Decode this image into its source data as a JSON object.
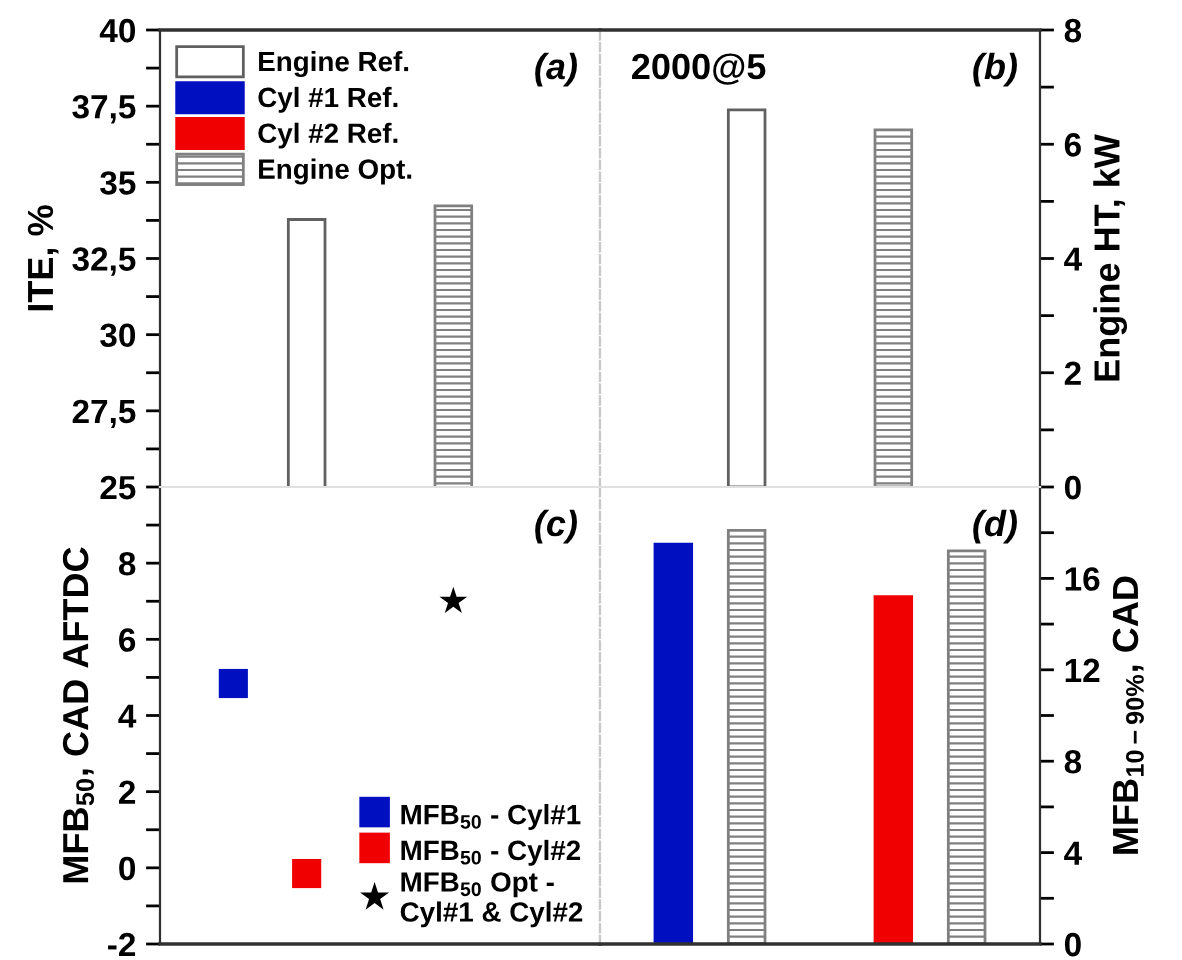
{
  "chart_data": [
    {
      "type": "bar",
      "categories": [
        null,
        null
      ],
      "ylabel": "ITE, %",
      "ylim": [
        25,
        40
      ],
      "yticks": [
        25,
        {
          "value": 26.25,
          "label": null
        },
        {
          "value": 27.5,
          "label": "27,5"
        },
        {
          "value": 28.75,
          "label": null
        },
        30,
        {
          "value": 31.25,
          "label": null
        },
        {
          "value": 32.5,
          "label": "32,5"
        },
        {
          "value": 33.75,
          "label": null
        },
        35,
        {
          "value": 36.25,
          "label": null
        },
        {
          "value": 37.5,
          "label": "37,5"
        },
        {
          "value": 38.75,
          "label": null
        },
        40
      ],
      "series": [
        {
          "name": "Engine Ref.",
          "color": "#ffffff",
          "values": [
            33.78,
            null
          ]
        },
        {
          "name": "Cyl #1 Ref.",
          "color": "#0010c0",
          "values": [
            null,
            null
          ]
        },
        {
          "name": "Cyl #2 Ref.",
          "color": "#f00000",
          "values": [
            null,
            null
          ]
        },
        {
          "name": "Engine Opt.",
          "color": "#808080",
          "values": [
            null,
            34.23
          ]
        }
      ],
      "legend": "top left",
      "grid": false,
      "tick_labels": "y",
      "annotations": [
        "(a)"
      ]
    },
    {
      "type": "bar",
      "categories": [
        null,
        null
      ],
      "ylabel": "Engine HT, kW",
      "ylim": [
        0,
        8
      ],
      "yticks": [
        0,
        {
          "value": 1,
          "label": null
        },
        2,
        {
          "value": 3,
          "label": null
        },
        4,
        {
          "value": 5,
          "label": null
        },
        6,
        {
          "value": 7,
          "label": null
        },
        8
      ],
      "series": [
        {
          "color": "#ffffff",
          "values": [
            6.6,
            null
          ]
        },
        {
          "color": "#808080",
          "values": [
            null,
            6.25
          ]
        }
      ],
      "grid": false,
      "tick_labels": "y",
      "annotations": [
        "2000@5",
        "(b)"
      ]
    },
    {
      "type": "scatter",
      "categories": [
        null,
        null,
        null,
        null,
        null
      ],
      "ylabel": "MFB$_{50}$, CAD AFTDC",
      "ylim": [
        -2,
        10
      ],
      "yticks": [
        -2,
        {
          "value": -1,
          "label": null
        },
        0,
        {
          "value": 1,
          "label": null
        },
        2,
        {
          "value": 3,
          "label": null
        },
        4,
        {
          "value": 5,
          "label": null
        },
        6,
        {
          "value": 7,
          "label": null
        },
        8,
        {
          "value": 9,
          "label": null
        }
      ],
      "series": [
        {
          "name": "MFB$_{50}$ - Cyl#1",
          "color": "#0010c0",
          "marker": "square",
          "values": [
            4.84,
            null,
            null,
            null,
            null
          ]
        },
        {
          "name": "MFB$_{50}$ - Cyl#2",
          "color": "#f00000",
          "marker": "square",
          "values": [
            null,
            -0.15,
            null,
            null,
            null
          ]
        },
        {
          "name": "MFB$_{50}$ Opt -\nCyl#1 & Cyl#2",
          "color": "#000000",
          "marker": "star",
          "values": [
            null,
            null,
            null,
            7.0,
            null
          ]
        }
      ],
      "legend": "bottom right",
      "grid": false,
      "tick_labels": "y",
      "annotations": [
        "(c)"
      ]
    },
    {
      "type": "bar",
      "categories": [
        null,
        null,
        null,
        null,
        null
      ],
      "ylabel": "MFB$_{10−90%}$, CAD",
      "ylim": [
        0,
        20
      ],
      "yticks": [
        0,
        {
          "value": 2,
          "label": null
        },
        4,
        {
          "value": 6,
          "label": null
        },
        8,
        {
          "value": 10,
          "label": null
        },
        12,
        {
          "value": 14,
          "label": null
        },
        16,
        {
          "value": 18,
          "label": null
        }
      ],
      "series": [
        {
          "color": "#0010c0",
          "values": [
            17.5,
            null,
            null,
            null,
            null
          ]
        },
        {
          "color": "#808080",
          "values": [
            null,
            18.1,
            null,
            null,
            17.2
          ]
        },
        {
          "color": "#f00000",
          "values": [
            null,
            null,
            null,
            15.2,
            null
          ]
        }
      ],
      "grid": false,
      "tick_labels": "y",
      "annotations": [
        "(d)"
      ]
    }
  ]
}
